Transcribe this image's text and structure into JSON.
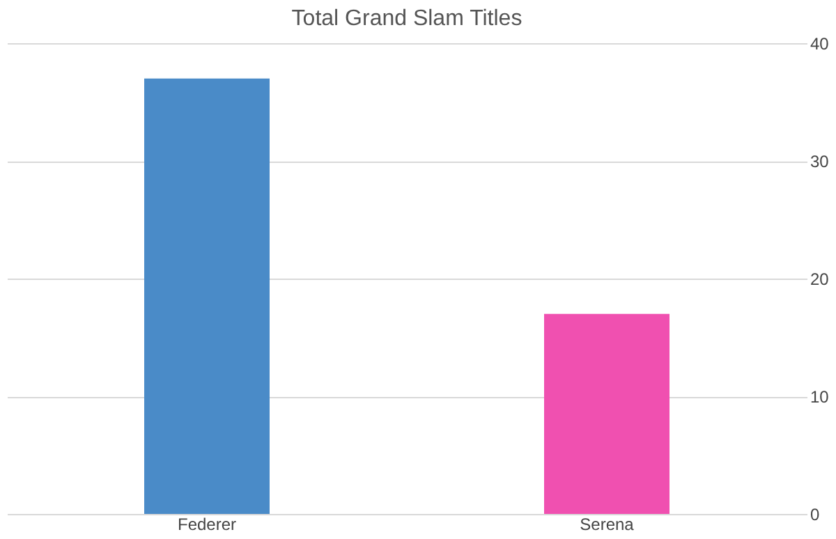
{
  "chart_data": {
    "type": "bar",
    "title": "Total Grand Slam Titles",
    "categories": [
      "Federer",
      "Serena"
    ],
    "values": [
      37,
      17
    ],
    "colors": [
      "#4a8bc8",
      "#f050b0"
    ],
    "ylim": [
      0,
      40
    ],
    "yticks": [
      0,
      10,
      20,
      30,
      40
    ],
    "grid": "y"
  }
}
